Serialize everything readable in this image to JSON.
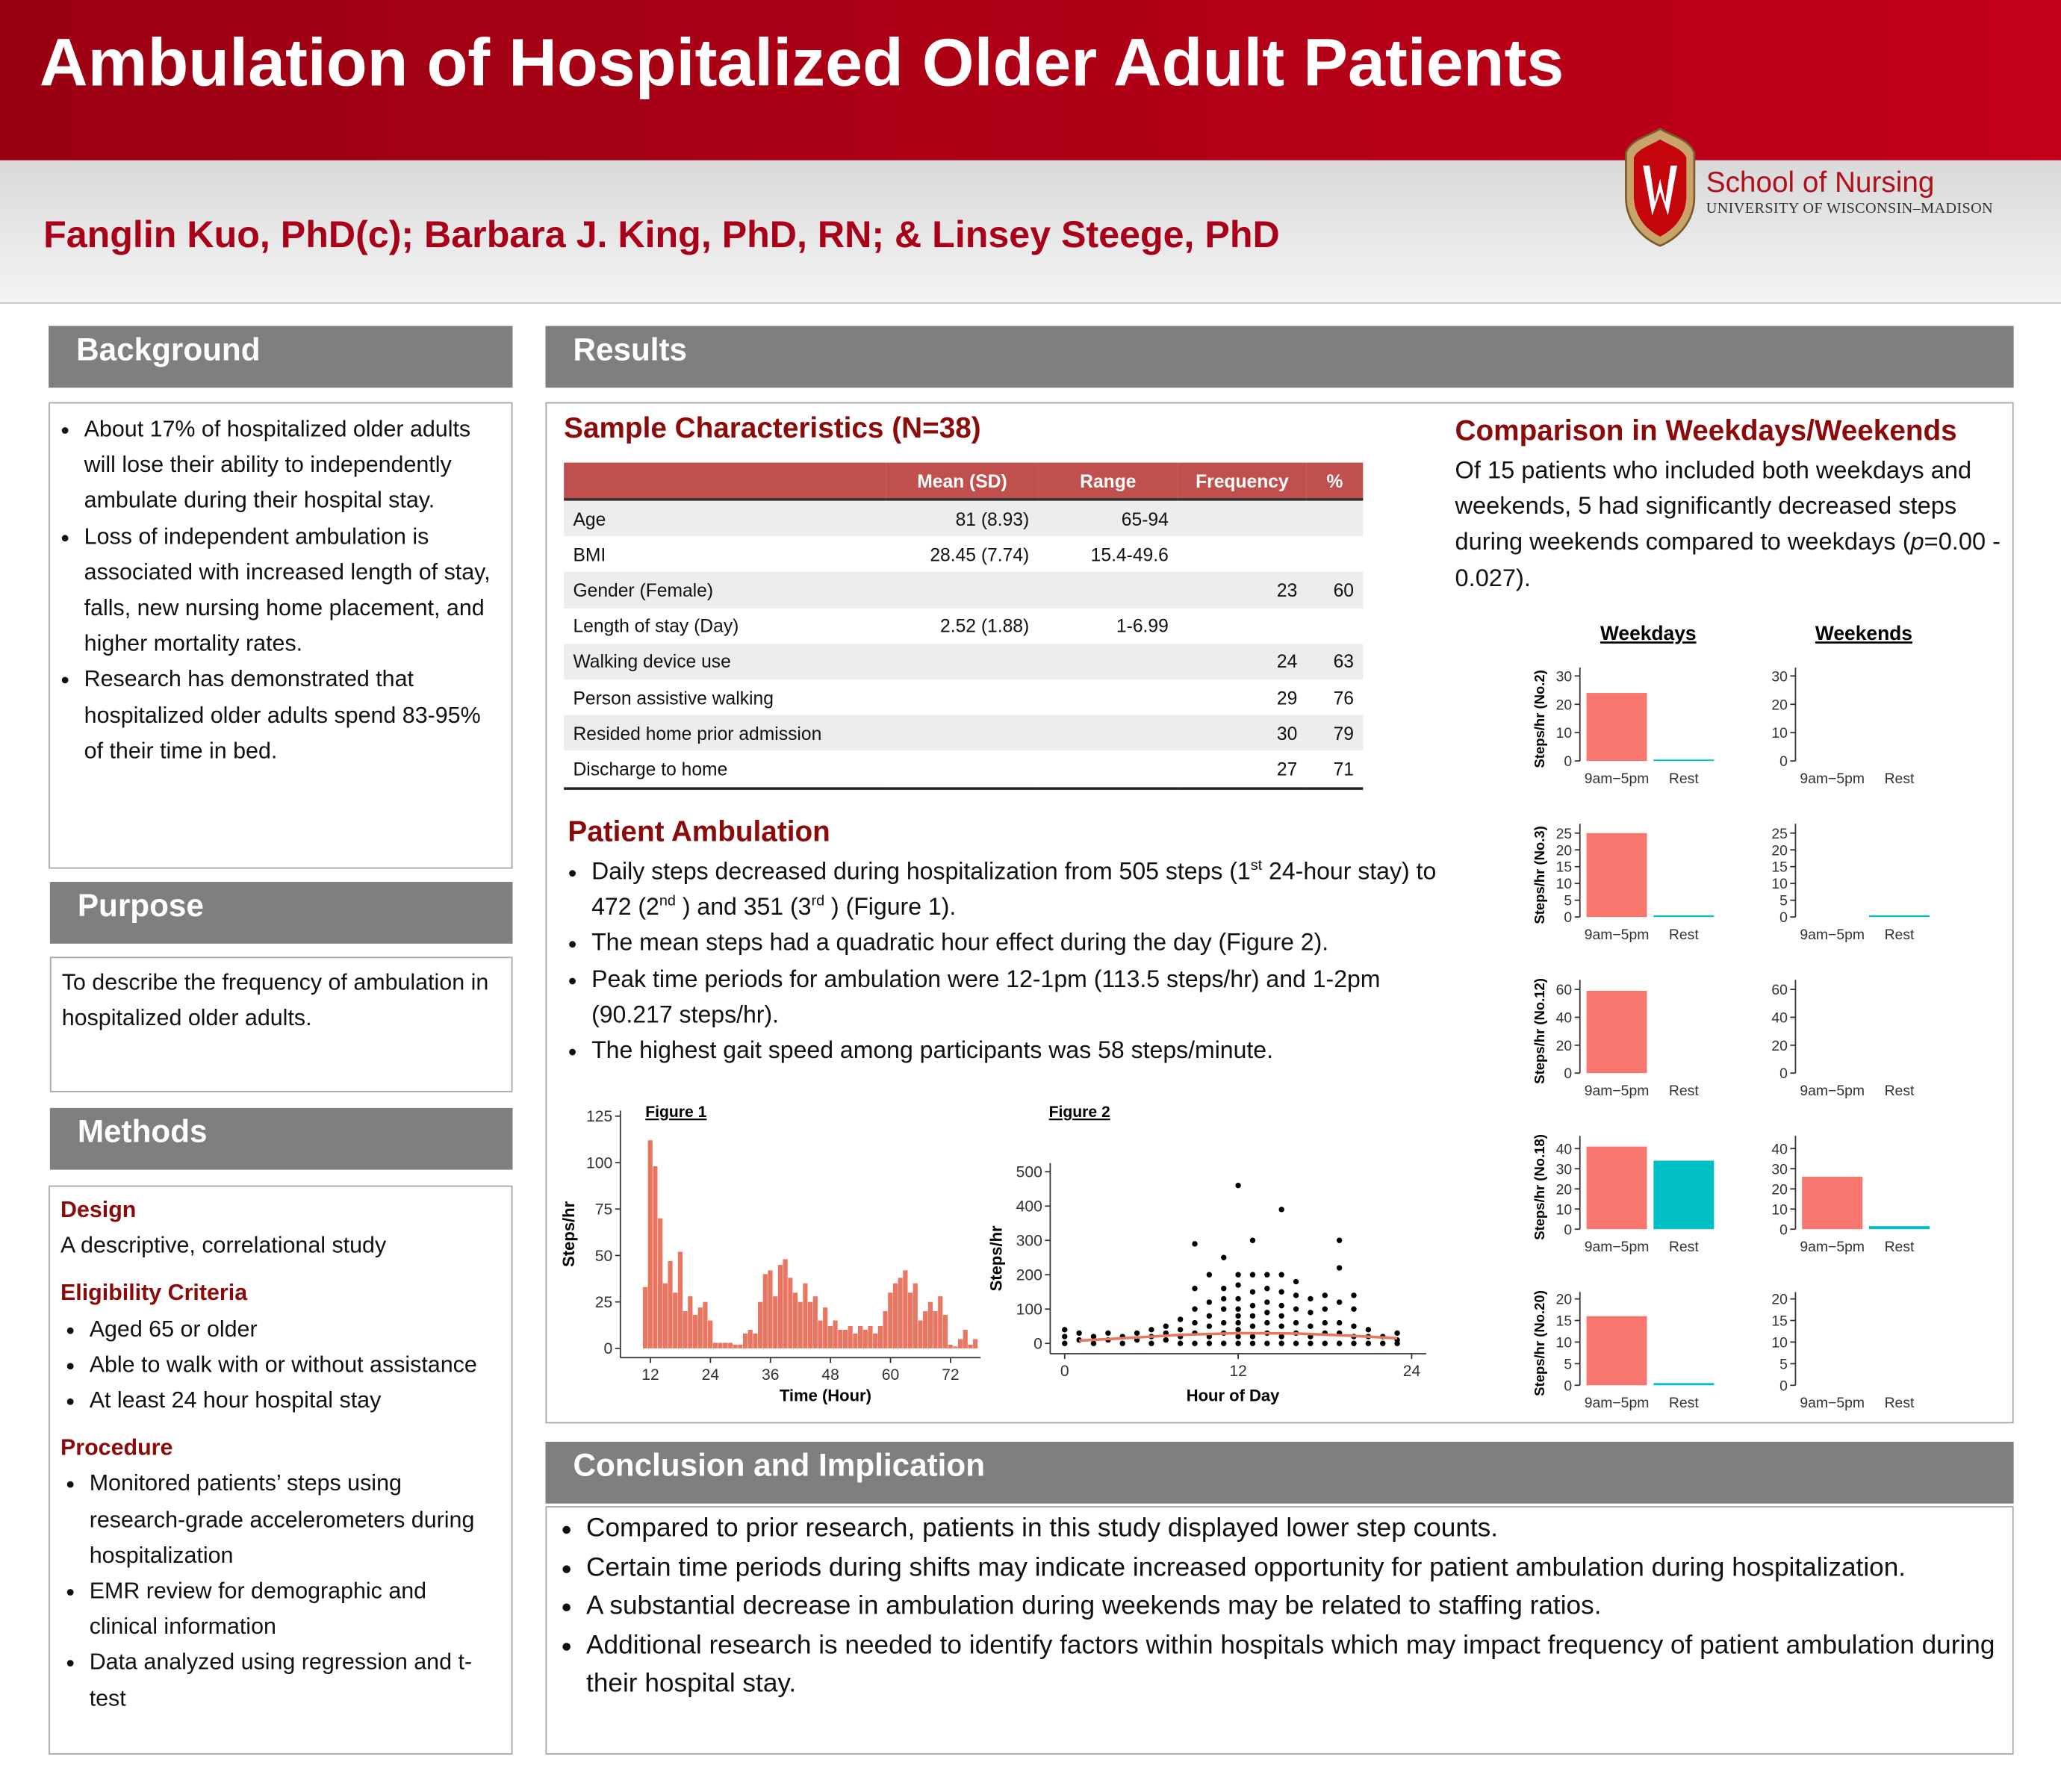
{
  "header": {
    "title": "Ambulation of Hospitalized Older Adult Patients",
    "authors": "Fanglin Kuo, PhD(c); Barbara J. King, PhD, RN; & Linsey Steege, PhD",
    "logo_name": "School of Nursing",
    "logo_sub": "UNIVERSITY OF WISCONSIN–MADISON"
  },
  "background": {
    "heading": "Background",
    "bullets": [
      "About 17% of hospitalized older adults will lose their ability to independently ambulate during their hospital stay.",
      "Loss of independent ambulation is associated with increased length of stay, falls, new nursing home placement, and higher mortality rates.",
      "Research has demonstrated that hospitalized older adults spend 83-95% of their time in bed."
    ]
  },
  "purpose": {
    "heading": "Purpose",
    "text": "To describe the frequency of ambulation in hospitalized older adults."
  },
  "methods": {
    "heading": "Methods",
    "design": {
      "heading": "Design",
      "text": "A descriptive, correlational study"
    },
    "eligibility": {
      "heading": "Eligibility Criteria",
      "bullets": [
        "Aged 65 or older",
        "Able to walk with or without assistance",
        "At least 24 hour hospital stay"
      ]
    },
    "procedure": {
      "heading": "Procedure",
      "bullets": [
        "Monitored patients’ steps using research-grade accelerometers during hospitalization",
        "EMR review for demographic and clinical information",
        "Data analyzed using regression and t-test"
      ]
    }
  },
  "results": {
    "heading": "Results",
    "table": {
      "title": "Sample Characteristics (N=38)",
      "columns": [
        "Mean (SD)",
        "Range",
        "Frequency",
        "%"
      ],
      "rows": [
        {
          "label": "Age",
          "mean_sd": "81 (8.93)",
          "range": "65-94"
        },
        {
          "label": "BMI",
          "mean_sd": "28.45 (7.74)",
          "range": "15.4-49.6"
        },
        {
          "label": "Gender (Female)",
          "frequency": 23,
          "percent": 60
        },
        {
          "label": "Length of stay (Day)",
          "mean_sd": "2.52 (1.88)",
          "range": "1-6.99"
        },
        {
          "label": "Walking device use",
          "frequency": 24,
          "percent": 63
        },
        {
          "label": "Person assistive walking",
          "frequency": 29,
          "percent": 76
        },
        {
          "label": "Resided home prior admission",
          "frequency": 30,
          "percent": 79
        },
        {
          "label": "Discharge to home",
          "frequency": 27,
          "percent": 71
        }
      ]
    },
    "ambulation": {
      "title": "Patient Ambulation",
      "bullets": [
        [
          "Daily steps decreased during hospitalization from 505 steps (1",
          "st",
          " 24-hour stay) to 472 (2",
          "nd",
          " ) and 351 (3",
          "rd",
          " ) (Figure 1)."
        ],
        [
          "The mean steps had a quadratic hour effect during the day (Figure 2)."
        ],
        [
          "Peak time periods for ambulation were 12-1pm (113.5 steps/hr) and 1-2pm (90.217 steps/hr)."
        ],
        [
          "The highest gait speed among participants was 58 steps/minute."
        ]
      ]
    },
    "figure1": {
      "type": "bar",
      "title": "Figure 1",
      "xlabel": "Time (Hour)",
      "ylabel": "Steps/hr",
      "color": "#ea7560",
      "x": [
        11,
        12,
        13,
        14,
        15,
        16,
        17,
        18,
        19,
        20,
        21,
        22,
        23,
        24,
        25,
        26,
        27,
        28,
        29,
        30,
        31,
        32,
        33,
        34,
        35,
        36,
        37,
        38,
        39,
        40,
        41,
        42,
        43,
        44,
        45,
        46,
        47,
        48,
        49,
        50,
        51,
        52,
        53,
        54,
        55,
        56,
        57,
        58,
        59,
        60,
        61,
        62,
        63,
        64,
        65,
        66,
        67,
        68,
        69,
        70,
        71,
        72,
        73,
        74,
        75,
        76,
        77
      ],
      "values": [
        33,
        112,
        98,
        70,
        35,
        47,
        30,
        52,
        20,
        28,
        18,
        22,
        25,
        15,
        3,
        3,
        3,
        3,
        2,
        2,
        8,
        10,
        8,
        25,
        40,
        42,
        28,
        45,
        48,
        38,
        30,
        25,
        35,
        25,
        28,
        15,
        22,
        12,
        15,
        10,
        10,
        12,
        8,
        12,
        10,
        12,
        8,
        12,
        20,
        30,
        35,
        38,
        42,
        30,
        35,
        15,
        20,
        25,
        20,
        28,
        18,
        2,
        1,
        5,
        10,
        2,
        5
      ],
      "xlim": [
        6,
        78
      ],
      "ylim": [
        -5,
        128
      ],
      "xticks": [
        12,
        24,
        36,
        48,
        60,
        72
      ],
      "yticks": [
        0,
        25,
        50,
        75,
        100,
        125
      ]
    },
    "figure2": {
      "type": "scatter",
      "title": "Figure 2",
      "xlabel": "Hour of Day",
      "ylabel": "Steps/hr",
      "color": "#000000",
      "x": [
        0,
        0,
        0,
        1,
        1,
        2,
        2,
        3,
        3,
        4,
        4,
        5,
        5,
        6,
        6,
        6,
        7,
        7,
        7,
        8,
        8,
        8,
        8,
        9,
        9,
        9,
        9,
        9,
        9,
        10,
        10,
        10,
        10,
        10,
        10,
        11,
        11,
        11,
        11,
        11,
        11,
        11,
        12,
        12,
        12,
        12,
        12,
        12,
        12,
        12,
        12,
        12,
        13,
        13,
        13,
        13,
        13,
        13,
        13,
        13,
        14,
        14,
        14,
        14,
        14,
        14,
        14,
        15,
        15,
        15,
        15,
        15,
        15,
        15,
        15,
        16,
        16,
        16,
        16,
        16,
        16,
        17,
        17,
        17,
        17,
        17,
        18,
        18,
        18,
        18,
        18,
        19,
        19,
        19,
        19,
        19,
        19,
        20,
        20,
        20,
        20,
        20,
        21,
        21,
        21,
        22,
        22,
        23,
        23,
        23
      ],
      "y": [
        0,
        20,
        40,
        10,
        30,
        0,
        20,
        10,
        30,
        0,
        20,
        10,
        30,
        0,
        20,
        40,
        10,
        30,
        50,
        0,
        20,
        40,
        70,
        0,
        30,
        60,
        100,
        160,
        290,
        0,
        20,
        50,
        80,
        120,
        200,
        0,
        30,
        60,
        100,
        130,
        160,
        250,
        0,
        20,
        40,
        60,
        80,
        100,
        130,
        170,
        200,
        460,
        0,
        20,
        50,
        80,
        110,
        150,
        200,
        300,
        0,
        30,
        60,
        90,
        120,
        160,
        200,
        0,
        20,
        50,
        80,
        110,
        150,
        200,
        390,
        0,
        30,
        60,
        100,
        140,
        180,
        0,
        20,
        50,
        90,
        130,
        0,
        30,
        60,
        100,
        140,
        0,
        30,
        60,
        120,
        220,
        300,
        0,
        20,
        50,
        100,
        140,
        0,
        20,
        40,
        0,
        20,
        0,
        10,
        30
      ],
      "fit": {
        "color": "#ea7560",
        "x": [
          1,
          4,
          8,
          12,
          16,
          20,
          23
        ],
        "y": [
          8,
          15,
          25,
          30,
          29,
          22,
          15
        ]
      },
      "xlim": [
        -1,
        25
      ],
      "ylim": [
        -30,
        525
      ],
      "xticks": [
        0,
        12,
        24
      ],
      "yticks": [
        0,
        100,
        200,
        300,
        400,
        500
      ]
    },
    "comparison": {
      "title": "Comparison in Weekdays/Weekends",
      "text": [
        "Of 15 patients who included both weekdays and weekends, 5 had significantly decreased steps during weekends compared to weekdays (",
        "p",
        "=0.00 - 0.027)."
      ],
      "columns": [
        "Weekdays",
        "Weekends"
      ],
      "categories": [
        "9am−5pm",
        "Rest"
      ],
      "colors": [
        "#f8766d",
        "#00bfc4"
      ],
      "rows": [
        {
          "ylabel": "Steps/hr (No.2)",
          "ylim": [
            0,
            32
          ],
          "yticks": [
            0,
            10,
            20,
            30
          ],
          "weekdays": [
            24,
            0.5
          ],
          "weekends": [
            0,
            0
          ]
        },
        {
          "ylabel": "Steps/hr (No.3)",
          "ylim": [
            0,
            27
          ],
          "yticks": [
            0,
            5,
            10,
            15,
            20,
            25
          ],
          "weekdays": [
            25,
            0.5
          ],
          "weekends": [
            0,
            0.5
          ]
        },
        {
          "ylabel": "Steps/hr (No.12)",
          "ylim": [
            0,
            65
          ],
          "yticks": [
            0,
            20,
            40,
            60
          ],
          "weekdays": [
            59,
            0
          ],
          "weekends": [
            0,
            0
          ]
        },
        {
          "ylabel": "Steps/hr (No.18)",
          "ylim": [
            0,
            45
          ],
          "yticks": [
            0,
            10,
            20,
            30,
            40
          ],
          "weekdays": [
            41,
            34
          ],
          "weekends": [
            26,
            1.5
          ]
        },
        {
          "ylabel": "Steps/hr (No.20)",
          "ylim": [
            0,
            21
          ],
          "yticks": [
            0,
            5,
            10,
            15,
            20
          ],
          "weekdays": [
            16,
            0.5
          ],
          "weekends": [
            0,
            0
          ]
        }
      ]
    }
  },
  "conclusion": {
    "heading": "Conclusion and Implication",
    "bullets": [
      "Compared to prior research, patients in this study displayed lower step counts.",
      "Certain time periods during shifts may indicate increased opportunity for patient ambulation during hospitalization.",
      "A substantial decrease in ambulation during weekends may be related to staffing ratios.",
      "Additional research is needed to identify factors within hospitals which may impact frequency of patient ambulation during their hospital stay."
    ]
  }
}
